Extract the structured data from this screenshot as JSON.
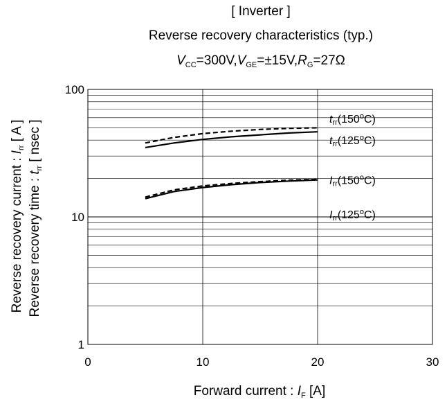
{
  "chart_data": {
    "type": "line",
    "title": "[ Inverter ]",
    "subtitle": "Reverse recovery characteristics  (typ.)",
    "conditions": {
      "vcc_symbol": "V",
      "vcc_sub": "CC",
      "vcc_value": "=300V,",
      "vge_symbol": "V",
      "vge_sub": "GE",
      "vge_value": "=±15V,",
      "rg_symbol": "R",
      "rg_sub": "G",
      "rg_value": "=27Ω"
    },
    "xlabel": {
      "text": "Forward current : ",
      "symbol": "I",
      "sub": "F",
      "unit": " [A]"
    },
    "ylabel_1": {
      "text": "Reverse recovery current : ",
      "symbol": "I",
      "sub": "rr",
      "unit": " [ A ]"
    },
    "ylabel_2": {
      "text": "Reverse recovery time : ",
      "symbol": "t",
      "sub": "rr",
      "unit": " [ nsec ]"
    },
    "xlim": [
      0,
      30
    ],
    "ylim": [
      1,
      100
    ],
    "yscale": "log",
    "x_ticks": [
      {
        "value": 0,
        "label": "0"
      },
      {
        "value": 10,
        "label": "10"
      },
      {
        "value": 20,
        "label": "20"
      },
      {
        "value": 30,
        "label": "30"
      }
    ],
    "y_ticks": [
      {
        "value": 1,
        "label": "1"
      },
      {
        "value": 10,
        "label": "10"
      },
      {
        "value": 100,
        "label": "100"
      }
    ],
    "grid": true,
    "series": [
      {
        "name": "trr(150°C)",
        "symbol": "t",
        "sub": "rr",
        "temp": "(150",
        "deg": "o",
        "unit": "C)",
        "style": "dashed",
        "label_y": 59,
        "x": [
          5,
          7.5,
          10,
          12.5,
          15,
          17.5,
          20
        ],
        "y": [
          38,
          42,
          45,
          47,
          48.5,
          49.5,
          50
        ]
      },
      {
        "name": "trr(125°C)",
        "symbol": "t",
        "sub": "rr",
        "temp": "(125",
        "deg": "o",
        "unit": "C)",
        "style": "solid",
        "label_y": 40,
        "x": [
          5,
          7.5,
          10,
          12.5,
          15,
          17.5,
          20
        ],
        "y": [
          35,
          38,
          40.5,
          42.5,
          44,
          45.5,
          46.5
        ]
      },
      {
        "name": "Irr(150°C)",
        "symbol": "I",
        "sub": "rr",
        "temp": "(150",
        "deg": "o",
        "unit": "C)",
        "style": "dashed",
        "label_y": 19.5,
        "x": [
          5,
          7.5,
          10,
          12.5,
          15,
          17.5,
          20
        ],
        "y": [
          14.3,
          16.3,
          17.5,
          18.3,
          18.9,
          19.4,
          19.7
        ]
      },
      {
        "name": "Irr(125°C)",
        "symbol": "I",
        "sub": "rr",
        "temp": "(125",
        "deg": "o",
        "unit": "C)",
        "style": "solid",
        "label_y": 10.5,
        "x": [
          5,
          7.5,
          10,
          12.5,
          15,
          17.5,
          20
        ],
        "y": [
          13.9,
          15.8,
          17.0,
          17.9,
          18.6,
          19.1,
          19.5
        ]
      }
    ]
  }
}
